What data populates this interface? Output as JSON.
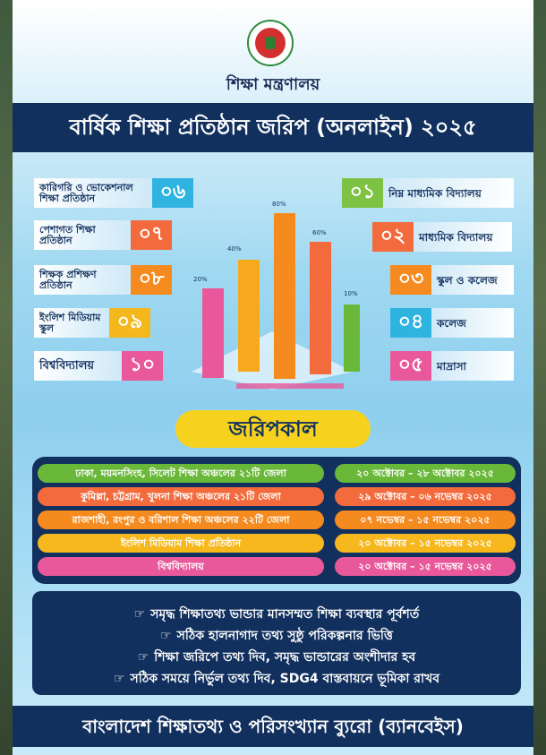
{
  "ministry": "শিক্ষা মন্ত্রণালয়",
  "title": "বার্ষিক শিক্ষা প্রতিষ্ঠান জরিপ (অনলাইন) ২০২৫",
  "left_items": [
    {
      "label": "কারিগরি ও ভোকেশনাল শিক্ষা প্রতিষ্ঠান",
      "num": "০৬",
      "color": "#2fb3df"
    },
    {
      "label": "পেশাগত শিক্ষা প্রতিষ্ঠান",
      "num": "০৭",
      "color": "#f36b3c"
    },
    {
      "label": "শিক্ষক প্রশিক্ষণ প্রতিষ্ঠান",
      "num": "০৮",
      "color": "#f58a1f"
    },
    {
      "label": "ইংলিশ মিডিয়াম স্কুল",
      "num": "০৯",
      "color": "#f4b81d"
    },
    {
      "label": "বিশ্ববিদ্যালয়",
      "num": "১০",
      "color": "#e8589a"
    }
  ],
  "right_items": [
    {
      "label": "নিম্ন মাধ্যমিক বিদ্যালয়",
      "num": "০১",
      "color": "#7dc242"
    },
    {
      "label": "মাধ্যমিক বিদ্যালয়",
      "num": "০২",
      "color": "#f36b3c"
    },
    {
      "label": "স্কুল ও কলেজ",
      "num": "০৩",
      "color": "#f58a1f"
    },
    {
      "label": "কলেজ",
      "num": "০৪",
      "color": "#2fb3df"
    },
    {
      "label": "মাদ্রাসা",
      "num": "০৫",
      "color": "#e8589a"
    }
  ],
  "chart_data": {
    "type": "bar",
    "annotations": [
      "80%",
      "60%",
      "40%",
      "20%",
      "10%"
    ],
    "bar_colors": [
      "#e8589a",
      "#f6a91d",
      "#f58a1f",
      "#f36b3c",
      "#6ab839"
    ]
  },
  "period_title": "জরিপকাল",
  "schedule": [
    {
      "area": "ঢাকা, ময়মনসিংহ, সিলেট শিক্ষা অঞ্চলের ২১টি জেলা",
      "dates": "২০ অক্টোবর – ২৮ অক্টোবর ২০২৫",
      "color": "#6ab839"
    },
    {
      "area": "কুমিল্লা, চট্টগ্রাম, খুলনা শিক্ষা অঞ্চলের ২১টি জেলা",
      "dates": "২৯ অক্টোবর – ০৬ নভেম্বর ২০২৫",
      "color": "#f36b3c"
    },
    {
      "area": "রাজশাহী, রংপুর ও বরিশাল শিক্ষা অঞ্চলের ২২টি জেলা",
      "dates": "০৭ নভেম্বর – ১৫ নভেম্বর ২০২৫",
      "color": "#f58a1f"
    },
    {
      "area": "ইংলিশ মিডিয়াম শিক্ষা প্রতিষ্ঠান",
      "dates": "২০ অক্টোবর – ১৫ নভেম্বর ২০২৫",
      "color": "#f6b81d"
    },
    {
      "area": "বিশ্ববিদ্যালয়",
      "dates": "২০ অক্টোবর – ১৫ নভেম্বর ২০২৫",
      "color": "#e8589a"
    }
  ],
  "messages": [
    "সমৃদ্ধ শিক্ষাতথ্য ভান্ডার মানসম্মত শিক্ষা ব্যবস্থার পূর্বশর্ত",
    "সঠিক হালনাগাদ তথ্য সুষ্ঠু পরিকল্পনার ভিত্তি",
    "শিক্ষা জরিপে তথ্য দিব, সমৃদ্ধ ভান্ডারের অংশীদার হব",
    "সঠিক সময়ে নির্ভুল তথ্য দিব, SDG4 বাস্তবায়নে ভূমিকা রাখব"
  ],
  "message_icon": "hand-point-icon",
  "footer": "বাংলাদেশ শিক্ষাতথ্য ও পরিসংখ্যান ব্যুরো (ব্যানবেইস)"
}
